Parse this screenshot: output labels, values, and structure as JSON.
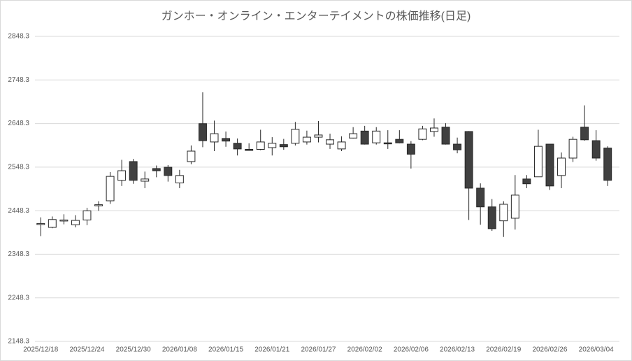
{
  "chart_data": {
    "type": "candlestick",
    "title": "ガンホー・オンライン・エンターテイメントの株価推移(日足)",
    "categories": [
      "2025/12/18",
      null,
      null,
      null,
      "2025/12/24",
      null,
      null,
      null,
      "2025/12/30",
      null,
      null,
      null,
      "2026/01/08",
      null,
      null,
      null,
      "2026/01/15",
      null,
      null,
      null,
      "2026/01/21",
      null,
      null,
      null,
      "2026/01/27",
      null,
      null,
      null,
      "2026/02/02",
      null,
      null,
      null,
      "2026/02/06",
      null,
      null,
      null,
      "2026/02/13",
      null,
      null,
      null,
      "2026/02/19",
      null,
      null,
      null,
      "2026/02/26",
      null,
      null,
      null,
      "2026/03/04",
      null
    ],
    "open": [
      2417,
      2410,
      2425,
      2416,
      2427,
      2460,
      2471,
      2518,
      2561,
      2516,
      2545,
      2548,
      2512,
      2561,
      2648,
      2606,
      2614,
      2603,
      2589,
      2589,
      2593,
      2600,
      2603,
      2606,
      2617,
      2601,
      2590,
      2615,
      2631,
      2604,
      2604,
      2612,
      2601,
      2612,
      2630,
      2640,
      2601,
      2630,
      2500,
      2457,
      2425,
      2431,
      2521,
      2526,
      2601,
      2529,
      2569,
      2640,
      2609,
      2592
    ],
    "high": [
      2433,
      2435,
      2440,
      2438,
      2455,
      2470,
      2537,
      2565,
      2567,
      2538,
      2552,
      2553,
      2542,
      2598,
      2720,
      2655,
      2630,
      2614,
      2603,
      2634,
      2617,
      2613,
      2652,
      2632,
      2654,
      2625,
      2619,
      2640,
      2643,
      2640,
      2633,
      2633,
      2608,
      2643,
      2660,
      2649,
      2616,
      2631,
      2511,
      2475,
      2470,
      2530,
      2530,
      2634,
      2601,
      2582,
      2618,
      2690,
      2633,
      2596
    ],
    "low": [
      2390,
      2408,
      2417,
      2410,
      2415,
      2448,
      2464,
      2505,
      2510,
      2500,
      2525,
      2515,
      2500,
      2555,
      2594,
      2585,
      2595,
      2575,
      2587,
      2587,
      2575,
      2588,
      2598,
      2600,
      2605,
      2590,
      2585,
      2614,
      2600,
      2600,
      2590,
      2603,
      2545,
      2610,
      2618,
      2600,
      2580,
      2427,
      2416,
      2402,
      2388,
      2405,
      2500,
      2526,
      2496,
      2500,
      2560,
      2609,
      2563,
      2505
    ],
    "close": [
      2419,
      2428,
      2427,
      2426,
      2448,
      2462,
      2527,
      2540,
      2518,
      2521,
      2540,
      2529,
      2529,
      2585,
      2609,
      2625,
      2608,
      2590,
      2587,
      2606,
      2603,
      2595,
      2635,
      2617,
      2622,
      2611,
      2606,
      2625,
      2601,
      2631,
      2602,
      2604,
      2578,
      2636,
      2638,
      2601,
      2588,
      2500,
      2457,
      2407,
      2463,
      2484,
      2510,
      2596,
      2505,
      2569,
      2612,
      2611,
      2569,
      2518
    ],
    "up_color": "#ffffff",
    "down_color": "#404040",
    "edge_color": "#262626",
    "ylim": [
      2148.3,
      2848.3
    ],
    "yticks": [
      2148.3,
      2248.3,
      2348.3,
      2448.3,
      2548.3,
      2648.3,
      2748.3,
      2848.3
    ],
    "grid": true
  }
}
